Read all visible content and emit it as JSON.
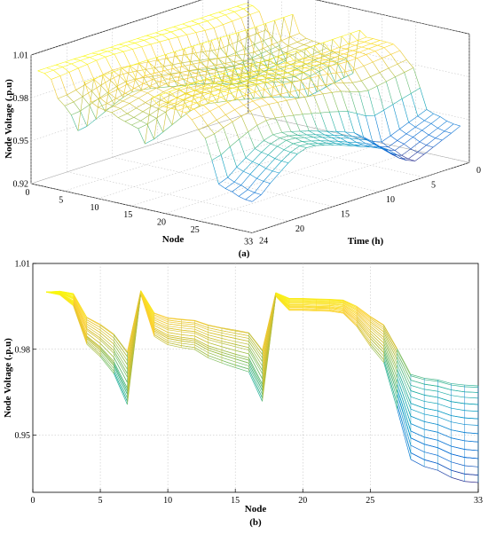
{
  "captions": {
    "a": "(a)",
    "b": "(b)"
  },
  "chart_data": [
    {
      "id": "a",
      "type": "surface",
      "zlabel": "Node Voltage (.p.u)",
      "xlabel": "Node",
      "ylabel": "Time (h)",
      "xlim": [
        0,
        33
      ],
      "ylim": [
        0,
        24
      ],
      "zlim": [
        0.92,
        1.01
      ],
      "xticks": [
        0,
        5,
        10,
        15,
        20,
        25,
        33
      ],
      "yticks": [
        0,
        5,
        10,
        15,
        20,
        24
      ],
      "zticks": [
        "0.92",
        "0.95",
        "0.98",
        "1.01"
      ],
      "grid": true,
      "colormap": "parula",
      "data_ref": "profile"
    },
    {
      "id": "b",
      "type": "line",
      "xlabel": "Node",
      "ylabel": "Node Voltage (.p.u)",
      "xlim": [
        0,
        33
      ],
      "ylim": [
        0.93,
        1.01
      ],
      "xticks": [
        0,
        5,
        10,
        15,
        20,
        25,
        33
      ],
      "yticks": [
        "0.95",
        "0.98",
        "1.01"
      ],
      "grid": true,
      "colormap": "parula",
      "x": [
        1,
        2,
        3,
        4,
        5,
        6,
        7,
        8,
        9,
        10,
        11,
        12,
        13,
        14,
        15,
        16,
        17,
        18,
        19,
        20,
        21,
        22,
        23,
        24,
        25,
        26,
        27,
        28,
        29,
        30,
        31,
        32,
        33
      ],
      "series": [
        {
          "values": [
            1.0,
            0.9995,
            0.9966,
            0.9846,
            0.9808,
            0.9757,
            0.9664,
            0.9997,
            0.9875,
            0.985,
            0.9842,
            0.9836,
            0.9812,
            0.9797,
            0.9783,
            0.977,
            0.9678,
            0.999,
            0.9952,
            0.9952,
            0.995,
            0.9949,
            0.9945,
            0.991,
            0.9856,
            0.981,
            0.968,
            0.954,
            0.952,
            0.951,
            0.949,
            0.948,
            0.9476
          ]
        },
        {
          "values": [
            1.0,
            0.9994,
            0.9964,
            0.9842,
            0.9803,
            0.975,
            0.9654,
            0.9996,
            0.987,
            0.9844,
            0.9836,
            0.983,
            0.9805,
            0.9789,
            0.9775,
            0.9762,
            0.9668,
            0.9989,
            0.9949,
            0.9949,
            0.9947,
            0.9946,
            0.9941,
            0.9904,
            0.9847,
            0.9799,
            0.9662,
            0.9514,
            0.9493,
            0.9482,
            0.9461,
            0.945,
            0.9446
          ]
        },
        {
          "values": [
            1.0,
            0.9993,
            0.9961,
            0.9837,
            0.9797,
            0.9743,
            0.9643,
            0.9995,
            0.9864,
            0.9838,
            0.9829,
            0.9823,
            0.9797,
            0.9781,
            0.9766,
            0.9752,
            0.9656,
            0.9988,
            0.9946,
            0.9946,
            0.9944,
            0.9943,
            0.9937,
            0.9898,
            0.9838,
            0.9788,
            0.9645,
            0.949,
            0.9468,
            0.9456,
            0.9434,
            0.9422,
            0.9418
          ]
        },
        {
          "values": [
            1.0,
            0.9992,
            0.9958,
            0.983,
            0.9789,
            0.9733,
            0.963,
            0.9994,
            0.9858,
            0.983,
            0.9821,
            0.9815,
            0.9788,
            0.9771,
            0.9756,
            0.9742,
            0.9643,
            0.9987,
            0.9942,
            0.9942,
            0.994,
            0.9939,
            0.9933,
            0.9891,
            0.9828,
            0.9776,
            0.9626,
            0.9464,
            0.9441,
            0.9429,
            0.9406,
            0.9393,
            0.9389
          ]
        },
        {
          "values": [
            1.0,
            0.9991,
            0.9955,
            0.9824,
            0.9781,
            0.9723,
            0.9618,
            0.9993,
            0.9851,
            0.9823,
            0.9813,
            0.9806,
            0.9778,
            0.9761,
            0.9745,
            0.9731,
            0.963,
            0.9986,
            0.9939,
            0.9939,
            0.9937,
            0.9936,
            0.9929,
            0.9885,
            0.9819,
            0.9764,
            0.9607,
            0.9438,
            0.9414,
            0.9401,
            0.9377,
            0.9364,
            0.936
          ]
        },
        {
          "values": [
            1.0,
            0.999,
            0.9952,
            0.9818,
            0.9774,
            0.9715,
            0.9607,
            0.9992,
            0.9845,
            0.9816,
            0.9806,
            0.9799,
            0.977,
            0.9752,
            0.9736,
            0.9721,
            0.9618,
            0.9985,
            0.9936,
            0.9936,
            0.9934,
            0.9933,
            0.9926,
            0.988,
            0.9811,
            0.9754,
            0.959,
            0.9415,
            0.939,
            0.9377,
            0.9352,
            0.9338,
            0.9334
          ]
        },
        {
          "values": [
            1.0,
            0.9991,
            0.9955,
            0.9824,
            0.9781,
            0.9723,
            0.9618,
            0.9993,
            0.9851,
            0.9823,
            0.9813,
            0.9806,
            0.9778,
            0.9761,
            0.9745,
            0.9731,
            0.963,
            0.9986,
            0.9939,
            0.9939,
            0.9937,
            0.9936,
            0.9929,
            0.9885,
            0.9819,
            0.9764,
            0.9607,
            0.9438,
            0.9414,
            0.9401,
            0.9377,
            0.9364,
            0.936
          ]
        },
        {
          "values": [
            1.0,
            0.9993,
            0.9961,
            0.9837,
            0.9797,
            0.9743,
            0.9643,
            0.9995,
            0.9864,
            0.9838,
            0.9829,
            0.9823,
            0.9797,
            0.9781,
            0.9766,
            0.9752,
            0.9656,
            0.9988,
            0.9946,
            0.9946,
            0.9944,
            0.9943,
            0.9937,
            0.9898,
            0.9838,
            0.9788,
            0.9645,
            0.949,
            0.9468,
            0.9456,
            0.9434,
            0.9422,
            0.9418
          ]
        },
        {
          "values": [
            1.0,
            0.9995,
            0.9966,
            0.9846,
            0.9808,
            0.9757,
            0.9664,
            0.9997,
            0.9875,
            0.985,
            0.9842,
            0.9836,
            0.9812,
            0.9797,
            0.9783,
            0.977,
            0.9678,
            0.999,
            0.9952,
            0.9952,
            0.995,
            0.9949,
            0.9945,
            0.991,
            0.9856,
            0.981,
            0.968,
            0.954,
            0.952,
            0.951,
            0.949,
            0.948,
            0.9476
          ]
        },
        {
          "values": [
            1.0,
            0.9996,
            0.997,
            0.9856,
            0.982,
            0.9772,
            0.9684,
            0.9998,
            0.9883,
            0.9859,
            0.9851,
            0.9846,
            0.9823,
            0.9809,
            0.9796,
            0.9784,
            0.9697,
            0.9991,
            0.9956,
            0.9956,
            0.9954,
            0.9953,
            0.9949,
            0.9916,
            0.9865,
            0.9822,
            0.9699,
            0.9566,
            0.9547,
            0.9537,
            0.9518,
            0.9509,
            0.9505
          ]
        },
        {
          "values": [
            1.0,
            0.9997,
            0.9975,
            0.9866,
            0.9832,
            0.9786,
            0.9703,
            0.9999,
            0.989,
            0.9868,
            0.9861,
            0.9856,
            0.9834,
            0.9821,
            0.9809,
            0.9797,
            0.9715,
            0.9992,
            0.996,
            0.996,
            0.9958,
            0.9957,
            0.9953,
            0.9922,
            0.9874,
            0.9833,
            0.9717,
            0.9591,
            0.9573,
            0.9564,
            0.9546,
            0.9537,
            0.9534
          ]
        },
        {
          "values": [
            1.0,
            0.9998,
            0.9978,
            0.9872,
            0.9839,
            0.9795,
            0.9715,
            1.0,
            0.9895,
            0.9874,
            0.9867,
            0.9862,
            0.9841,
            0.9828,
            0.9817,
            0.9806,
            0.9727,
            0.9993,
            0.9963,
            0.9963,
            0.9961,
            0.996,
            0.9956,
            0.9927,
            0.9881,
            0.9842,
            0.9731,
            0.9611,
            0.9594,
            0.9585,
            0.9568,
            0.956,
            0.9557
          ]
        },
        {
          "values": [
            1.0,
            0.9999,
            0.9981,
            0.988,
            0.9848,
            0.9806,
            0.973,
            1.0001,
            0.9902,
            0.9881,
            0.9875,
            0.987,
            0.985,
            0.9838,
            0.9827,
            0.9817,
            0.9742,
            0.9994,
            0.9966,
            0.9966,
            0.9964,
            0.9963,
            0.996,
            0.9932,
            0.9889,
            0.9852,
            0.9747,
            0.9634,
            0.9618,
            0.961,
            0.9594,
            0.9586,
            0.9583
          ]
        },
        {
          "values": [
            1.0,
            1.0,
            0.9984,
            0.9888,
            0.9858,
            0.9818,
            0.9746,
            1.0002,
            0.9908,
            0.9889,
            0.9883,
            0.9878,
            0.9859,
            0.9848,
            0.9838,
            0.9828,
            0.9757,
            0.9995,
            0.9969,
            0.9969,
            0.9967,
            0.9966,
            0.9963,
            0.9937,
            0.9896,
            0.9861,
            0.9762,
            0.9655,
            0.964,
            0.9632,
            0.9617,
            0.961,
            0.9607
          ]
        },
        {
          "values": [
            1.0,
            1.0001,
            0.9988,
            0.9896,
            0.9867,
            0.9829,
            0.976,
            1.0003,
            0.9914,
            0.9896,
            0.989,
            0.9886,
            0.9868,
            0.9857,
            0.9847,
            0.9838,
            0.977,
            0.9996,
            0.9972,
            0.9972,
            0.997,
            0.9969,
            0.9966,
            0.9941,
            0.9902,
            0.9869,
            0.9775,
            0.9674,
            0.966,
            0.9653,
            0.9639,
            0.9632,
            0.9629
          ]
        },
        {
          "values": [
            1.0,
            1.0002,
            0.9991,
            0.9903,
            0.9876,
            0.984,
            0.9774,
            1.0004,
            0.992,
            0.9902,
            0.9896,
            0.9892,
            0.9875,
            0.9865,
            0.9856,
            0.9847,
            0.9782,
            0.9997,
            0.9975,
            0.9975,
            0.9973,
            0.9972,
            0.9969,
            0.9945,
            0.9908,
            0.9876,
            0.9787,
            0.9692,
            0.9678,
            0.9671,
            0.9658,
            0.9651,
            0.9649
          ]
        },
        {
          "values": [
            1.0,
            1.0003,
            0.9994,
            0.991,
            0.9884,
            0.985,
            0.9787,
            1.0005,
            0.9925,
            0.9908,
            0.9903,
            0.9899,
            0.9883,
            0.9873,
            0.9864,
            0.9856,
            0.9794,
            0.9998,
            0.9977,
            0.9977,
            0.9975,
            0.9974,
            0.9971,
            0.9949,
            0.9913,
            0.9883,
            0.9798,
            0.9707,
            0.9694,
            0.9688,
            0.9675,
            0.9669,
            0.9667
          ]
        },
        {
          "values": [
            1.0,
            1.0003,
            0.9995,
            0.9912,
            0.9887,
            0.9853,
            0.9791,
            1.0005,
            0.9927,
            0.991,
            0.9905,
            0.9901,
            0.9885,
            0.9875,
            0.9867,
            0.9858,
            0.9797,
            0.9998,
            0.9978,
            0.9978,
            0.9976,
            0.9975,
            0.9972,
            0.995,
            0.9915,
            0.9885,
            0.9801,
            0.9712,
            0.9699,
            0.9693,
            0.968,
            0.9675,
            0.9672
          ]
        },
        {
          "values": [
            1.0,
            1.0002,
            0.9991,
            0.9903,
            0.9876,
            0.984,
            0.9774,
            1.0004,
            0.992,
            0.9902,
            0.9896,
            0.9892,
            0.9875,
            0.9865,
            0.9856,
            0.9847,
            0.9782,
            0.9997,
            0.9975,
            0.9975,
            0.9973,
            0.9972,
            0.9969,
            0.9945,
            0.9908,
            0.9876,
            0.9787,
            0.9692,
            0.9678,
            0.9671,
            0.9658,
            0.9651,
            0.9649
          ]
        },
        {
          "values": [
            1.0,
            1.0,
            0.9984,
            0.9888,
            0.9858,
            0.9818,
            0.9746,
            1.0002,
            0.9908,
            0.9889,
            0.9883,
            0.9878,
            0.9859,
            0.9848,
            0.9838,
            0.9828,
            0.9757,
            0.9995,
            0.9969,
            0.9969,
            0.9967,
            0.9966,
            0.9963,
            0.9937,
            0.9896,
            0.9861,
            0.9762,
            0.9655,
            0.964,
            0.9632,
            0.9617,
            0.961,
            0.9607
          ]
        },
        {
          "values": [
            1.0,
            0.9998,
            0.9978,
            0.9872,
            0.9839,
            0.9795,
            0.9715,
            1.0,
            0.9895,
            0.9874,
            0.9867,
            0.9862,
            0.9841,
            0.9828,
            0.9817,
            0.9806,
            0.9727,
            0.9993,
            0.9963,
            0.9963,
            0.9961,
            0.996,
            0.9956,
            0.9927,
            0.9881,
            0.9842,
            0.9731,
            0.9611,
            0.9594,
            0.9585,
            0.9568,
            0.956,
            0.9557
          ]
        },
        {
          "values": [
            1.0,
            0.9996,
            0.997,
            0.9856,
            0.982,
            0.9772,
            0.9684,
            0.9998,
            0.9883,
            0.9859,
            0.9851,
            0.9846,
            0.9823,
            0.9809,
            0.9796,
            0.9784,
            0.9697,
            0.9991,
            0.9956,
            0.9956,
            0.9954,
            0.9953,
            0.9949,
            0.9916,
            0.9865,
            0.9822,
            0.9699,
            0.9566,
            0.9547,
            0.9537,
            0.9518,
            0.9509,
            0.9505
          ]
        },
        {
          "values": [
            1.0,
            0.9994,
            0.9964,
            0.9842,
            0.9803,
            0.975,
            0.9654,
            0.9996,
            0.987,
            0.9844,
            0.9836,
            0.983,
            0.9805,
            0.9789,
            0.9775,
            0.9762,
            0.9668,
            0.9989,
            0.9949,
            0.9949,
            0.9947,
            0.9946,
            0.9941,
            0.9904,
            0.9847,
            0.9799,
            0.9662,
            0.9514,
            0.9493,
            0.9482,
            0.9461,
            0.945,
            0.9446
          ]
        },
        {
          "values": [
            1.0,
            0.9993,
            0.9961,
            0.9837,
            0.9797,
            0.9743,
            0.9643,
            0.9995,
            0.9864,
            0.9838,
            0.9829,
            0.9823,
            0.9797,
            0.9781,
            0.9766,
            0.9752,
            0.9656,
            0.9988,
            0.9946,
            0.9946,
            0.9944,
            0.9943,
            0.9937,
            0.9898,
            0.9838,
            0.9788,
            0.9645,
            0.949,
            0.9468,
            0.9456,
            0.9434,
            0.9422,
            0.9418
          ]
        }
      ]
    }
  ]
}
